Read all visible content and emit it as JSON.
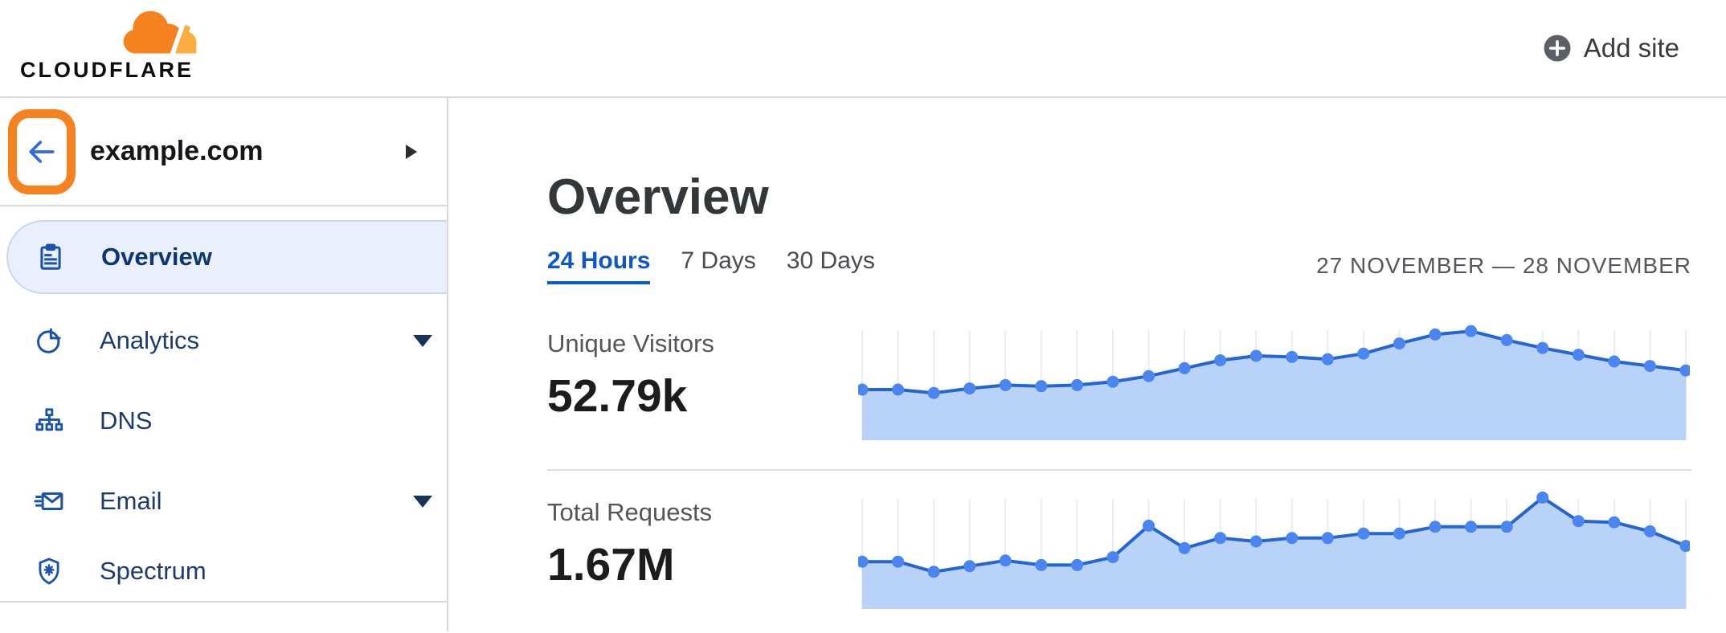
{
  "header": {
    "logo_text": "CLOUDFLARE",
    "add_site_label": "Add site"
  },
  "sidebar": {
    "site": {
      "name": "example.com"
    },
    "items": [
      {
        "label": "Overview",
        "icon": "clipboard-icon",
        "selected": true,
        "expandable": false
      },
      {
        "label": "Analytics",
        "icon": "pie-chart-icon",
        "selected": false,
        "expandable": true
      },
      {
        "label": "DNS",
        "icon": "network-tree-icon",
        "selected": false,
        "expandable": false
      },
      {
        "label": "Email",
        "icon": "email-icon",
        "selected": false,
        "expandable": true
      },
      {
        "label": "Spectrum",
        "icon": "shield-icon",
        "selected": false,
        "expandable": false
      }
    ]
  },
  "main": {
    "title": "Overview",
    "tabs": [
      {
        "label": "24 Hours",
        "active": true
      },
      {
        "label": "7 Days",
        "active": false
      },
      {
        "label": "30 Days",
        "active": false
      }
    ],
    "date_range": "27 NOVEMBER — 28 NOVEMBER",
    "metrics": [
      {
        "label": "Unique Visitors",
        "value": "52.79k"
      },
      {
        "label": "Total Requests",
        "value": "1.67M"
      }
    ]
  },
  "colors": {
    "brand_orange": "#f6821f",
    "brand_orange_light": "#fbad41",
    "annotation_orange": "#f6821f",
    "active_tab_blue": "#0e57c9",
    "nav_icon_blue": "#1a52ad",
    "selected_item_bg": "#e9f0fb",
    "chart_line": "#2365d2",
    "chart_dot": "#4a85f1",
    "chart_fill": "#b9d2f7",
    "chart_grid": "#e7ecf4",
    "divider_gray": "#d9d9d9"
  },
  "chart_data": [
    {
      "type": "area",
      "title": "Unique Visitors",
      "summary_value": "52.79k",
      "x_description": "24 hourly points, 27 November — 28 November (no axis labels shown)",
      "x_labels_visible": false,
      "y_labels_visible": false,
      "grid": "vertical-only",
      "ylim": [
        0,
        100
      ],
      "values_unit": "relative height, 0-100",
      "values": [
        45,
        45,
        42,
        46,
        49,
        48,
        49,
        52,
        57,
        64,
        71,
        75,
        74,
        72,
        77,
        86,
        94,
        97,
        89,
        82,
        76,
        70,
        66,
        62
      ]
    },
    {
      "type": "area",
      "title": "Total Requests",
      "summary_value": "1.67M",
      "x_description": "24 hourly points, 27 November — 28 November (no axis labels shown)",
      "x_labels_visible": false,
      "y_labels_visible": false,
      "grid": "vertical-only",
      "ylim": [
        0,
        100
      ],
      "values_unit": "relative height, 0-100",
      "values": [
        42,
        42,
        33,
        38,
        43,
        39,
        39,
        46,
        74,
        54,
        63,
        60,
        63,
        63,
        67,
        67,
        73,
        73,
        73,
        99,
        78,
        77,
        69,
        56
      ]
    }
  ]
}
